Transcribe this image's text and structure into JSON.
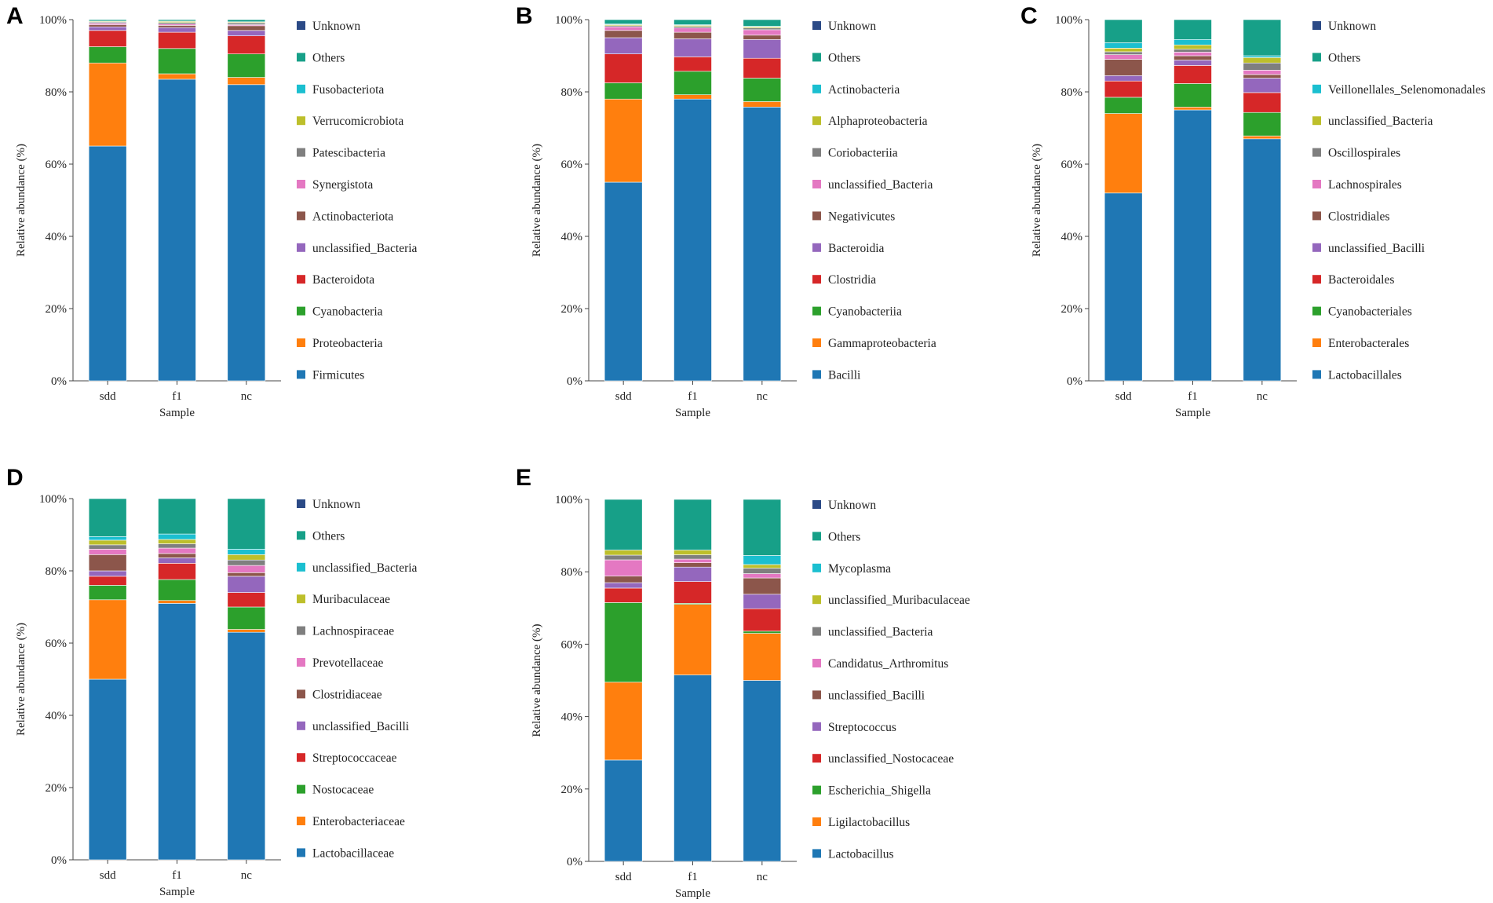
{
  "colors": {
    "Unknown": "#2b4a86",
    "Others": "#17a088",
    "c10": "#1bbfd0",
    "c9": "#bdbf2b",
    "c8": "#7f7f7f",
    "c7": "#e478c2",
    "c6": "#8c564b",
    "c5": "#9467bd",
    "c4": "#d62728",
    "c3": "#2ca02c",
    "c2": "#ff7f0e",
    "c1": "#1f77b4"
  },
  "chart_data": [
    {
      "type": "bar",
      "stacked": true,
      "panel": "A",
      "xlabel": "Sample",
      "ylabel": "Relative abundance (%)",
      "yticks": [
        "0%",
        "20%",
        "40%",
        "60%",
        "80%",
        "100%"
      ],
      "ylim": [
        0,
        100
      ],
      "categories": [
        "sdd",
        "f1",
        "nc"
      ],
      "series": [
        {
          "name": "Firmicutes",
          "key": "c1",
          "values": [
            65.0,
            83.5,
            82.0
          ]
        },
        {
          "name": "Proteobacteria",
          "key": "c2",
          "values": [
            23.0,
            1.5,
            2.0
          ]
        },
        {
          "name": "Cyanobacteria",
          "key": "c3",
          "values": [
            4.5,
            7.0,
            6.5
          ]
        },
        {
          "name": "Bacteroidota",
          "key": "c4",
          "values": [
            4.5,
            4.5,
            5.0
          ]
        },
        {
          "name": "unclassified_Bacteria",
          "key": "c5",
          "values": [
            1.0,
            1.3,
            1.5
          ]
        },
        {
          "name": "Actinobacteriota",
          "key": "c6",
          "values": [
            0.6,
            0.6,
            1.3
          ]
        },
        {
          "name": "Synergistota",
          "key": "c7",
          "values": [
            0.4,
            0.4,
            0.3
          ]
        },
        {
          "name": "Patescibacteria",
          "key": "c8",
          "values": [
            0.3,
            0.4,
            0.5
          ]
        },
        {
          "name": "Verrucomicrobiota",
          "key": "c9",
          "values": [
            0.2,
            0.3,
            0.2
          ]
        },
        {
          "name": "Fusobacteriota",
          "key": "c10",
          "values": [
            0.1,
            0.1,
            0.1
          ]
        },
        {
          "name": "Others",
          "key": "Others",
          "values": [
            0.4,
            0.4,
            0.6
          ]
        },
        {
          "name": "Unknown",
          "key": "Unknown",
          "values": [
            0.0,
            0.0,
            0.0
          ]
        }
      ]
    },
    {
      "type": "bar",
      "stacked": true,
      "panel": "B",
      "xlabel": "Sample",
      "ylabel": "Relative abundance (%)",
      "yticks": [
        "0%",
        "20%",
        "40%",
        "60%",
        "80%",
        "100%"
      ],
      "ylim": [
        0,
        100
      ],
      "categories": [
        "sdd",
        "f1",
        "nc"
      ],
      "series": [
        {
          "name": "Bacilli",
          "key": "c1",
          "values": [
            55.0,
            78.0,
            75.8
          ]
        },
        {
          "name": "Gammaproteobacteria",
          "key": "c2",
          "values": [
            23.0,
            1.2,
            1.5
          ]
        },
        {
          "name": "Cyanobacteriia",
          "key": "c3",
          "values": [
            4.5,
            6.5,
            6.5
          ]
        },
        {
          "name": "Clostridia",
          "key": "c4",
          "values": [
            8.0,
            4.0,
            5.5
          ]
        },
        {
          "name": "Bacteroidia",
          "key": "c5",
          "values": [
            4.5,
            5.0,
            5.2
          ]
        },
        {
          "name": "Negativicutes",
          "key": "c6",
          "values": [
            2.0,
            1.8,
            1.2
          ]
        },
        {
          "name": "unclassified_Bacteria",
          "key": "c7",
          "values": [
            1.0,
            1.2,
            1.5
          ]
        },
        {
          "name": "Coriobacteriia",
          "key": "c8",
          "values": [
            0.3,
            0.4,
            0.5
          ]
        },
        {
          "name": "Alphaproteobacteria",
          "key": "c9",
          "values": [
            0.3,
            0.3,
            0.3
          ]
        },
        {
          "name": "Actinobacteria",
          "key": "c10",
          "values": [
            0.2,
            0.2,
            0.2
          ]
        },
        {
          "name": "Others",
          "key": "Others",
          "values": [
            1.2,
            1.4,
            1.8
          ]
        },
        {
          "name": "Unknown",
          "key": "Unknown",
          "values": [
            0.0,
            0.0,
            0.0
          ]
        }
      ]
    },
    {
      "type": "bar",
      "stacked": true,
      "panel": "C",
      "xlabel": "Sample",
      "ylabel": "Relative abundance (%)",
      "yticks": [
        "0%",
        "20%",
        "40%",
        "60%",
        "80%",
        "100%"
      ],
      "ylim": [
        0,
        100
      ],
      "categories": [
        "sdd",
        "f1",
        "nc"
      ],
      "series": [
        {
          "name": "Lactobacillales",
          "key": "c1",
          "values": [
            52.0,
            75.0,
            67.0
          ]
        },
        {
          "name": "Enterobacterales",
          "key": "c2",
          "values": [
            22.0,
            0.8,
            0.8
          ]
        },
        {
          "name": "Cyanobacteriales",
          "key": "c3",
          "values": [
            4.5,
            6.5,
            6.5
          ]
        },
        {
          "name": "Bacteroidales",
          "key": "c4",
          "values": [
            4.5,
            5.0,
            5.5
          ]
        },
        {
          "name": "unclassified_Bacilli",
          "key": "c5",
          "values": [
            1.5,
            1.5,
            4.0
          ]
        },
        {
          "name": "Clostridiales",
          "key": "c6",
          "values": [
            4.5,
            1.2,
            1.0
          ]
        },
        {
          "name": "Lachnospirales",
          "key": "c7",
          "values": [
            1.3,
            1.0,
            1.2
          ]
        },
        {
          "name": "Oscillospirales",
          "key": "c8",
          "values": [
            0.8,
            0.8,
            2.0
          ]
        },
        {
          "name": "unclassified_Bacteria",
          "key": "c9",
          "values": [
            1.0,
            1.2,
            1.5
          ]
        },
        {
          "name": "Veillonellales_Selenomonadales",
          "key": "c10",
          "values": [
            1.5,
            1.5,
            0.5
          ]
        },
        {
          "name": "Others",
          "key": "Others",
          "values": [
            6.4,
            5.5,
            10.0
          ]
        },
        {
          "name": "Unknown",
          "key": "Unknown",
          "values": [
            0.0,
            0.0,
            0.0
          ]
        }
      ]
    },
    {
      "type": "bar",
      "stacked": true,
      "panel": "D",
      "xlabel": "Sample",
      "ylabel": "Relative abundance (%)",
      "yticks": [
        "0%",
        "20%",
        "40%",
        "60%",
        "80%",
        "100%"
      ],
      "ylim": [
        0,
        100
      ],
      "categories": [
        "sdd",
        "f1",
        "nc"
      ],
      "series": [
        {
          "name": "Lactobacillaceae",
          "key": "c1",
          "values": [
            50.0,
            71.0,
            63.0
          ]
        },
        {
          "name": "Enterobacteriaceae",
          "key": "c2",
          "values": [
            22.0,
            0.8,
            0.8
          ]
        },
        {
          "name": "Nostocaceae",
          "key": "c3",
          "values": [
            4.0,
            5.8,
            6.2
          ]
        },
        {
          "name": "Streptococcaceae",
          "key": "c4",
          "values": [
            2.5,
            4.5,
            4.0
          ]
        },
        {
          "name": "unclassified_Bacilli",
          "key": "c5",
          "values": [
            1.5,
            1.5,
            4.5
          ]
        },
        {
          "name": "Clostridiaceae",
          "key": "c6",
          "values": [
            4.5,
            1.2,
            1.0
          ]
        },
        {
          "name": "Prevotellaceae",
          "key": "c7",
          "values": [
            1.5,
            1.5,
            2.0
          ]
        },
        {
          "name": "Lachnospiraceae",
          "key": "c8",
          "values": [
            1.2,
            1.2,
            1.5
          ]
        },
        {
          "name": "Muribaculaceae",
          "key": "c9",
          "values": [
            1.3,
            1.2,
            1.5
          ]
        },
        {
          "name": "unclassified_Bacteria",
          "key": "c10",
          "values": [
            1.0,
            1.5,
            1.5
          ]
        },
        {
          "name": "Others",
          "key": "Others",
          "values": [
            10.5,
            9.8,
            14.0
          ]
        },
        {
          "name": "Unknown",
          "key": "Unknown",
          "values": [
            0.0,
            0.0,
            0.0
          ]
        }
      ]
    },
    {
      "type": "bar",
      "stacked": true,
      "panel": "E",
      "xlabel": "Sample",
      "ylabel": "Relative abundance (%)",
      "yticks": [
        "0%",
        "20%",
        "40%",
        "60%",
        "80%",
        "100%"
      ],
      "ylim": [
        0,
        100
      ],
      "categories": [
        "sdd",
        "f1",
        "nc"
      ],
      "series": [
        {
          "name": "Lactobacillus",
          "key": "c1",
          "values": [
            28.0,
            51.5,
            50.0
          ]
        },
        {
          "name": "Ligilactobacillus",
          "key": "c2",
          "values": [
            21.5,
            19.5,
            13.0
          ]
        },
        {
          "name": "Escherichia_Shigella",
          "key": "c3",
          "values": [
            22.0,
            0.3,
            0.6
          ]
        },
        {
          "name": "unclassified_Nostocaceae",
          "key": "c4",
          "values": [
            4.0,
            6.0,
            6.2
          ]
        },
        {
          "name": "Streptococcus",
          "key": "c5",
          "values": [
            1.5,
            4.0,
            4.0
          ]
        },
        {
          "name": "unclassified_Bacilli",
          "key": "c6",
          "values": [
            1.8,
            1.2,
            4.5
          ]
        },
        {
          "name": "Candidatus_Arthromitus",
          "key": "c7",
          "values": [
            4.5,
            1.0,
            1.2
          ]
        },
        {
          "name": "unclassified_Bacteria",
          "key": "c8",
          "values": [
            1.3,
            1.2,
            1.5
          ]
        },
        {
          "name": "unclassified_Muribaculaceae",
          "key": "c9",
          "values": [
            1.4,
            1.3,
            1.0
          ]
        },
        {
          "name": "Mycoplasma",
          "key": "c10",
          "values": [
            0.0,
            0.0,
            2.5
          ]
        },
        {
          "name": "Others",
          "key": "Others",
          "values": [
            14.0,
            14.0,
            15.5
          ]
        },
        {
          "name": "Unknown",
          "key": "Unknown",
          "values": [
            0.0,
            0.0,
            0.0
          ]
        }
      ]
    }
  ]
}
